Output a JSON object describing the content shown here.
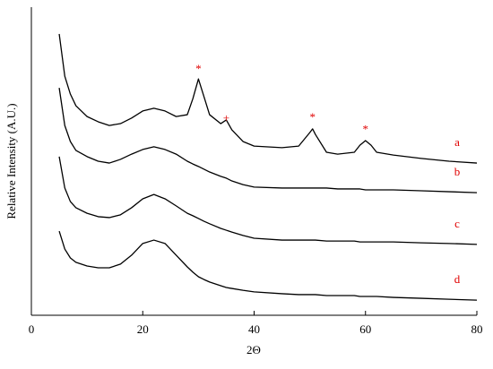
{
  "chart_data": {
    "type": "line",
    "xlabel": "2Θ",
    "ylabel": "Relative Intensity (A.U.)",
    "x": [
      5,
      6,
      7,
      8,
      10,
      12,
      14,
      16,
      18,
      20,
      22,
      24,
      26,
      28,
      29,
      30,
      31,
      32,
      34,
      35,
      36,
      38,
      40,
      45,
      48,
      50,
      50.5,
      51,
      53,
      55,
      58,
      59,
      60,
      61,
      62,
      65,
      70,
      75,
      80
    ],
    "series": [
      {
        "name": "a",
        "color": "#000000",
        "values": [
          91.3,
          77.6,
          71.8,
          68.0,
          64.5,
          62.8,
          61.6,
          62.2,
          64.0,
          66.3,
          67.2,
          66.3,
          64.5,
          65.1,
          70.3,
          76.7,
          70.9,
          65.1,
          62.2,
          63.4,
          60.2,
          56.4,
          54.9,
          54.4,
          54.9,
          59.3,
          60.5,
          58.7,
          52.9,
          52.3,
          52.9,
          55.2,
          56.7,
          55.2,
          52.9,
          52.0,
          50.9,
          50.0,
          49.4
        ]
      },
      {
        "name": "b",
        "color": "#000000",
        "values": [
          73.8,
          61.6,
          56.4,
          53.5,
          51.5,
          50.0,
          49.4,
          50.6,
          52.3,
          53.8,
          54.7,
          53.8,
          52.3,
          50.0,
          49.1,
          48.3,
          47.4,
          46.5,
          45.1,
          44.5,
          43.6,
          42.4,
          41.6,
          41.3,
          41.3,
          41.3,
          41.3,
          41.3,
          41.3,
          41.0,
          41.0,
          41.0,
          40.7,
          40.7,
          40.7,
          40.7,
          40.4,
          40.1,
          39.8
        ]
      },
      {
        "name": "c",
        "color": "#000000",
        "values": [
          51.5,
          41.3,
          36.9,
          34.9,
          33.1,
          32.0,
          31.7,
          32.6,
          34.9,
          37.8,
          39.2,
          37.8,
          35.5,
          33.1,
          32.3,
          31.4,
          30.5,
          29.7,
          28.2,
          27.6,
          27.0,
          25.9,
          25.0,
          24.4,
          24.4,
          24.4,
          24.4,
          24.4,
          24.1,
          24.1,
          24.1,
          23.8,
          23.8,
          23.8,
          23.8,
          23.8,
          23.5,
          23.3,
          23.0
        ]
      },
      {
        "name": "d",
        "color": "#000000",
        "values": [
          27.3,
          21.5,
          18.6,
          17.2,
          16.0,
          15.4,
          15.4,
          16.6,
          19.5,
          23.3,
          24.4,
          23.3,
          19.5,
          15.7,
          14.0,
          12.5,
          11.6,
          10.8,
          9.6,
          9.0,
          8.7,
          8.1,
          7.6,
          7.0,
          6.7,
          6.7,
          6.7,
          6.7,
          6.4,
          6.4,
          6.4,
          6.1,
          6.1,
          6.1,
          6.1,
          5.8,
          5.5,
          5.2,
          4.9
        ]
      }
    ],
    "annotations": [
      {
        "text": "*",
        "x": 30,
        "y": 79.7
      },
      {
        "text": "+",
        "x": 35,
        "y": 63.7
      },
      {
        "text": "*",
        "x": 50.5,
        "y": 64.0
      },
      {
        "text": "*",
        "x": 60,
        "y": 60.0
      }
    ],
    "label_color": "#e00000",
    "xlim": [
      0,
      80
    ],
    "xticks": [
      0,
      20,
      40,
      60,
      80
    ],
    "ylim": [
      0,
      100
    ]
  }
}
